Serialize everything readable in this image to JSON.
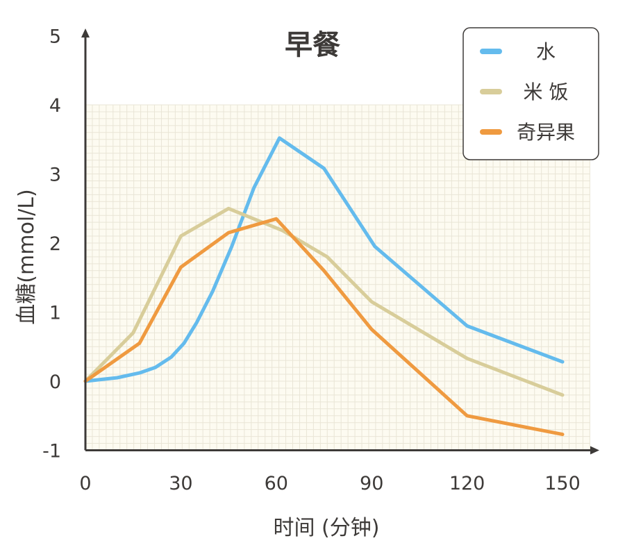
{
  "chart_data": {
    "type": "line",
    "title": "早餐",
    "xlabel": "时间 (分钟)",
    "ylabel": "血糖(mmol/L)",
    "xlim": [
      0,
      150
    ],
    "ylim": [
      -1,
      5
    ],
    "grid": true,
    "grid_range_y": [
      -1,
      4
    ],
    "legend_position": "top-right",
    "x_ticks": [
      0,
      30,
      60,
      90,
      120,
      150
    ],
    "y_ticks": [
      -1,
      0,
      1,
      2,
      3,
      4,
      5
    ],
    "series": [
      {
        "name": "水",
        "color": "#64bbed",
        "smooth_segments": [
          [
            0,
            2
          ]
        ],
        "points": [
          [
            0,
            0.0
          ],
          [
            10,
            0.05
          ],
          [
            17,
            0.12
          ],
          [
            22,
            0.2
          ],
          [
            27,
            0.35
          ],
          [
            31,
            0.55
          ],
          [
            35,
            0.85
          ],
          [
            40,
            1.3
          ],
          [
            46,
            1.95
          ],
          [
            53,
            2.8
          ],
          [
            61,
            3.52
          ],
          [
            75,
            3.08
          ],
          [
            91,
            1.95
          ],
          [
            120,
            0.8
          ],
          [
            150,
            0.28
          ]
        ]
      },
      {
        "name": "米 饭",
        "color": "#d8cd9a",
        "points": [
          [
            0,
            0.0
          ],
          [
            15,
            0.7
          ],
          [
            30,
            2.1
          ],
          [
            45,
            2.5
          ],
          [
            62,
            2.18
          ],
          [
            76,
            1.8
          ],
          [
            90,
            1.15
          ],
          [
            120,
            0.33
          ],
          [
            150,
            -0.2
          ]
        ]
      },
      {
        "name": "奇异果",
        "color": "#ef9a40",
        "points": [
          [
            0,
            0.0
          ],
          [
            17,
            0.55
          ],
          [
            30,
            1.65
          ],
          [
            45,
            2.15
          ],
          [
            60,
            2.35
          ],
          [
            75,
            1.6
          ],
          [
            90,
            0.75
          ],
          [
            120,
            -0.5
          ],
          [
            150,
            -0.77
          ]
        ]
      }
    ]
  },
  "colors": {
    "axis": "#3d3a38",
    "grid": "#e9e5d6",
    "grid_background": "#fdfbf1",
    "legend_border": "#3d3a38"
  }
}
